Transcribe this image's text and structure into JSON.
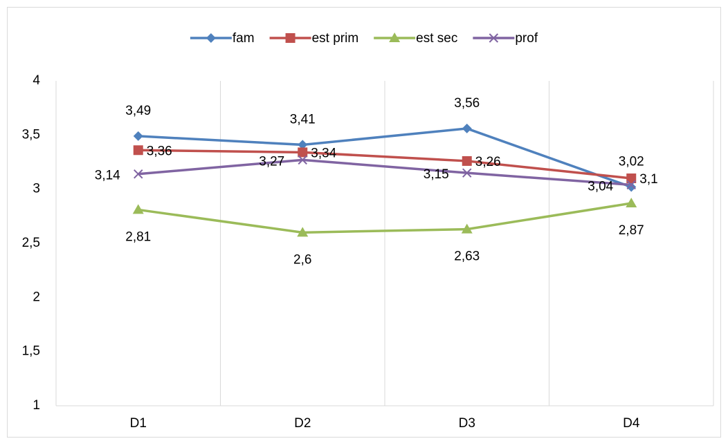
{
  "chart_data": {
    "type": "line",
    "categories": [
      "D1",
      "D2",
      "D3",
      "D4"
    ],
    "series": [
      {
        "name": "fam",
        "color": "#4f81bd",
        "marker": "diamond",
        "label_position": "above",
        "values": [
          3.49,
          3.41,
          3.56,
          3.02
        ],
        "value_labels": [
          "3,49",
          "3,41",
          "3,56",
          "3,02"
        ]
      },
      {
        "name": "est prim",
        "color": "#c0504d",
        "marker": "square",
        "label_position": "right",
        "values": [
          3.36,
          3.34,
          3.26,
          3.1
        ],
        "value_labels": [
          "3,36",
          "3,34",
          "3,26",
          "3,1"
        ]
      },
      {
        "name": "est sec",
        "color": "#9bbb59",
        "marker": "triangle",
        "label_position": "below",
        "values": [
          2.81,
          2.6,
          2.63,
          2.87
        ],
        "value_labels": [
          "2,81",
          "2,6",
          "2,63",
          "2,87"
        ]
      },
      {
        "name": "prof",
        "color": "#8064a2",
        "marker": "x",
        "label_position": "left",
        "values": [
          3.14,
          3.27,
          3.15,
          3.04
        ],
        "value_labels": [
          "3,14",
          "3,27",
          "3,15",
          "3,04"
        ]
      }
    ],
    "ylim": [
      1,
      4
    ],
    "yticks": [
      1,
      {
        "value": 1.5,
        "label": "1,5"
      },
      2,
      {
        "value": 2.5,
        "label": "2,5"
      },
      3,
      {
        "value": 3.5,
        "label": "3,5"
      },
      4
    ],
    "grid": true,
    "legend": "top"
  }
}
